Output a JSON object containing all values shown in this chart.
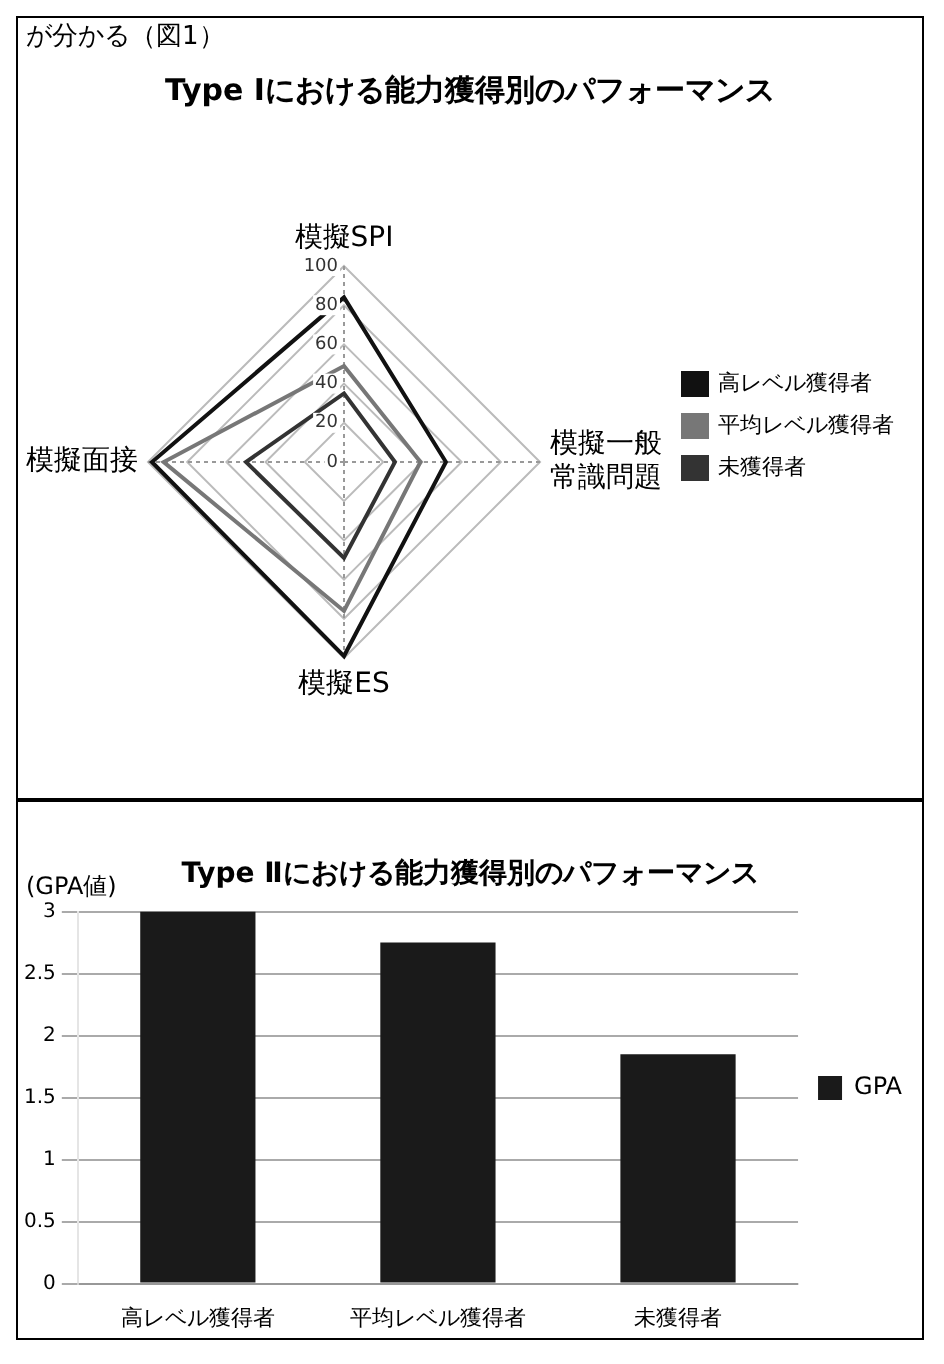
{
  "chart_data": [
    {
      "type": "radar",
      "title": "Type Ⅰにおける能力獲得別のパフォーマンス",
      "annotations": [
        "が分かる（図1）"
      ],
      "categories": [
        "模擬SPI",
        "模擬一般常識問題",
        "模擬ES",
        "模擬面接"
      ],
      "series": [
        {
          "name": "高レベル獲得者",
          "color": "#111111",
          "values": [
            84,
            52,
            99,
            98
          ]
        },
        {
          "name": "平均レベル獲得者",
          "color": "#777777",
          "values": [
            49,
            39,
            76,
            92
          ]
        },
        {
          "name": "未獲得者",
          "color": "#333333",
          "values": [
            35,
            26,
            49,
            50
          ]
        }
      ],
      "ylim": [
        0,
        100
      ],
      "yticks": [
        0,
        20,
        40,
        60,
        80,
        100
      ],
      "grid": true,
      "legend": "right",
      "marker": "none"
    },
    {
      "type": "bar",
      "title": "Type Ⅱにおける能力獲得別のパフォーマンス",
      "ylabel": "(GPA値)",
      "categories": [
        "高レベル獲得者",
        "平均レベル獲得者",
        "未獲得者"
      ],
      "series": [
        {
          "name": "GPA",
          "color": "#1a1a1a",
          "values": [
            3.0,
            2.75,
            1.85
          ]
        }
      ],
      "ylim": [
        0,
        3
      ],
      "yticks": [
        0,
        0.5,
        1,
        1.5,
        2,
        2.5,
        3
      ],
      "grid": "y",
      "legend": "right"
    }
  ]
}
